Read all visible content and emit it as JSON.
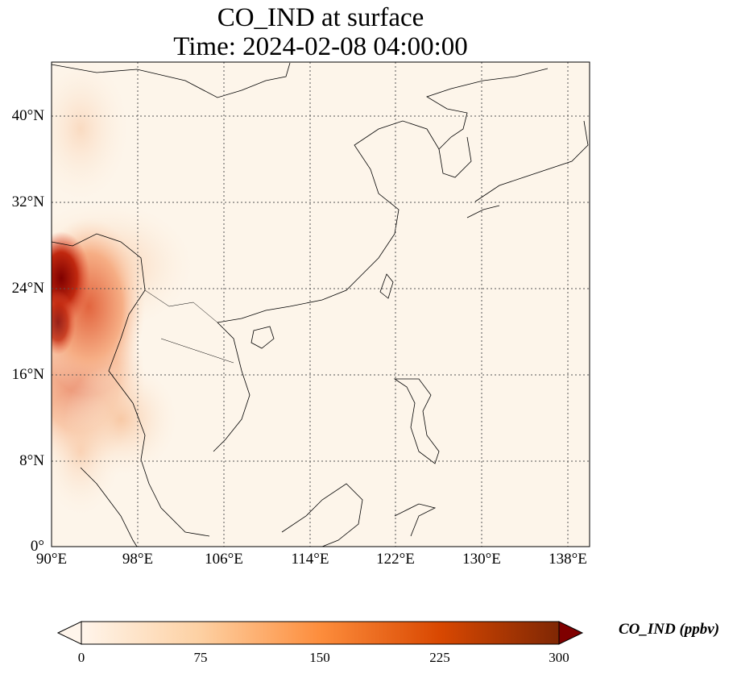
{
  "title": {
    "line1": "CO_IND at surface",
    "line2": "Time: 2024-02-08 04:00:00"
  },
  "map": {
    "extent": {
      "lon_min": 90,
      "lon_max": 140,
      "lat_min": 0,
      "lat_max": 45
    },
    "gridlines": true,
    "lat_ticks": [
      "0°",
      "8°N",
      "16°N",
      "24°N",
      "32°N",
      "40°N"
    ],
    "lon_ticks": [
      "90°E",
      "98°E",
      "106°E",
      "114°E",
      "122°E",
      "130°E",
      "138°E"
    ],
    "field": "CO_IND",
    "hotspot_region": "Bangladesh / Myanmar"
  },
  "colorbar": {
    "label": "CO_IND (ppbv)",
    "ticks": [
      "0",
      "75",
      "150",
      "225",
      "300"
    ],
    "min": 0,
    "max": 300,
    "extend": "both",
    "colors": [
      "#fff5eb",
      "#fdd0a2",
      "#fd8d3c",
      "#d94801",
      "#7f2704"
    ]
  }
}
